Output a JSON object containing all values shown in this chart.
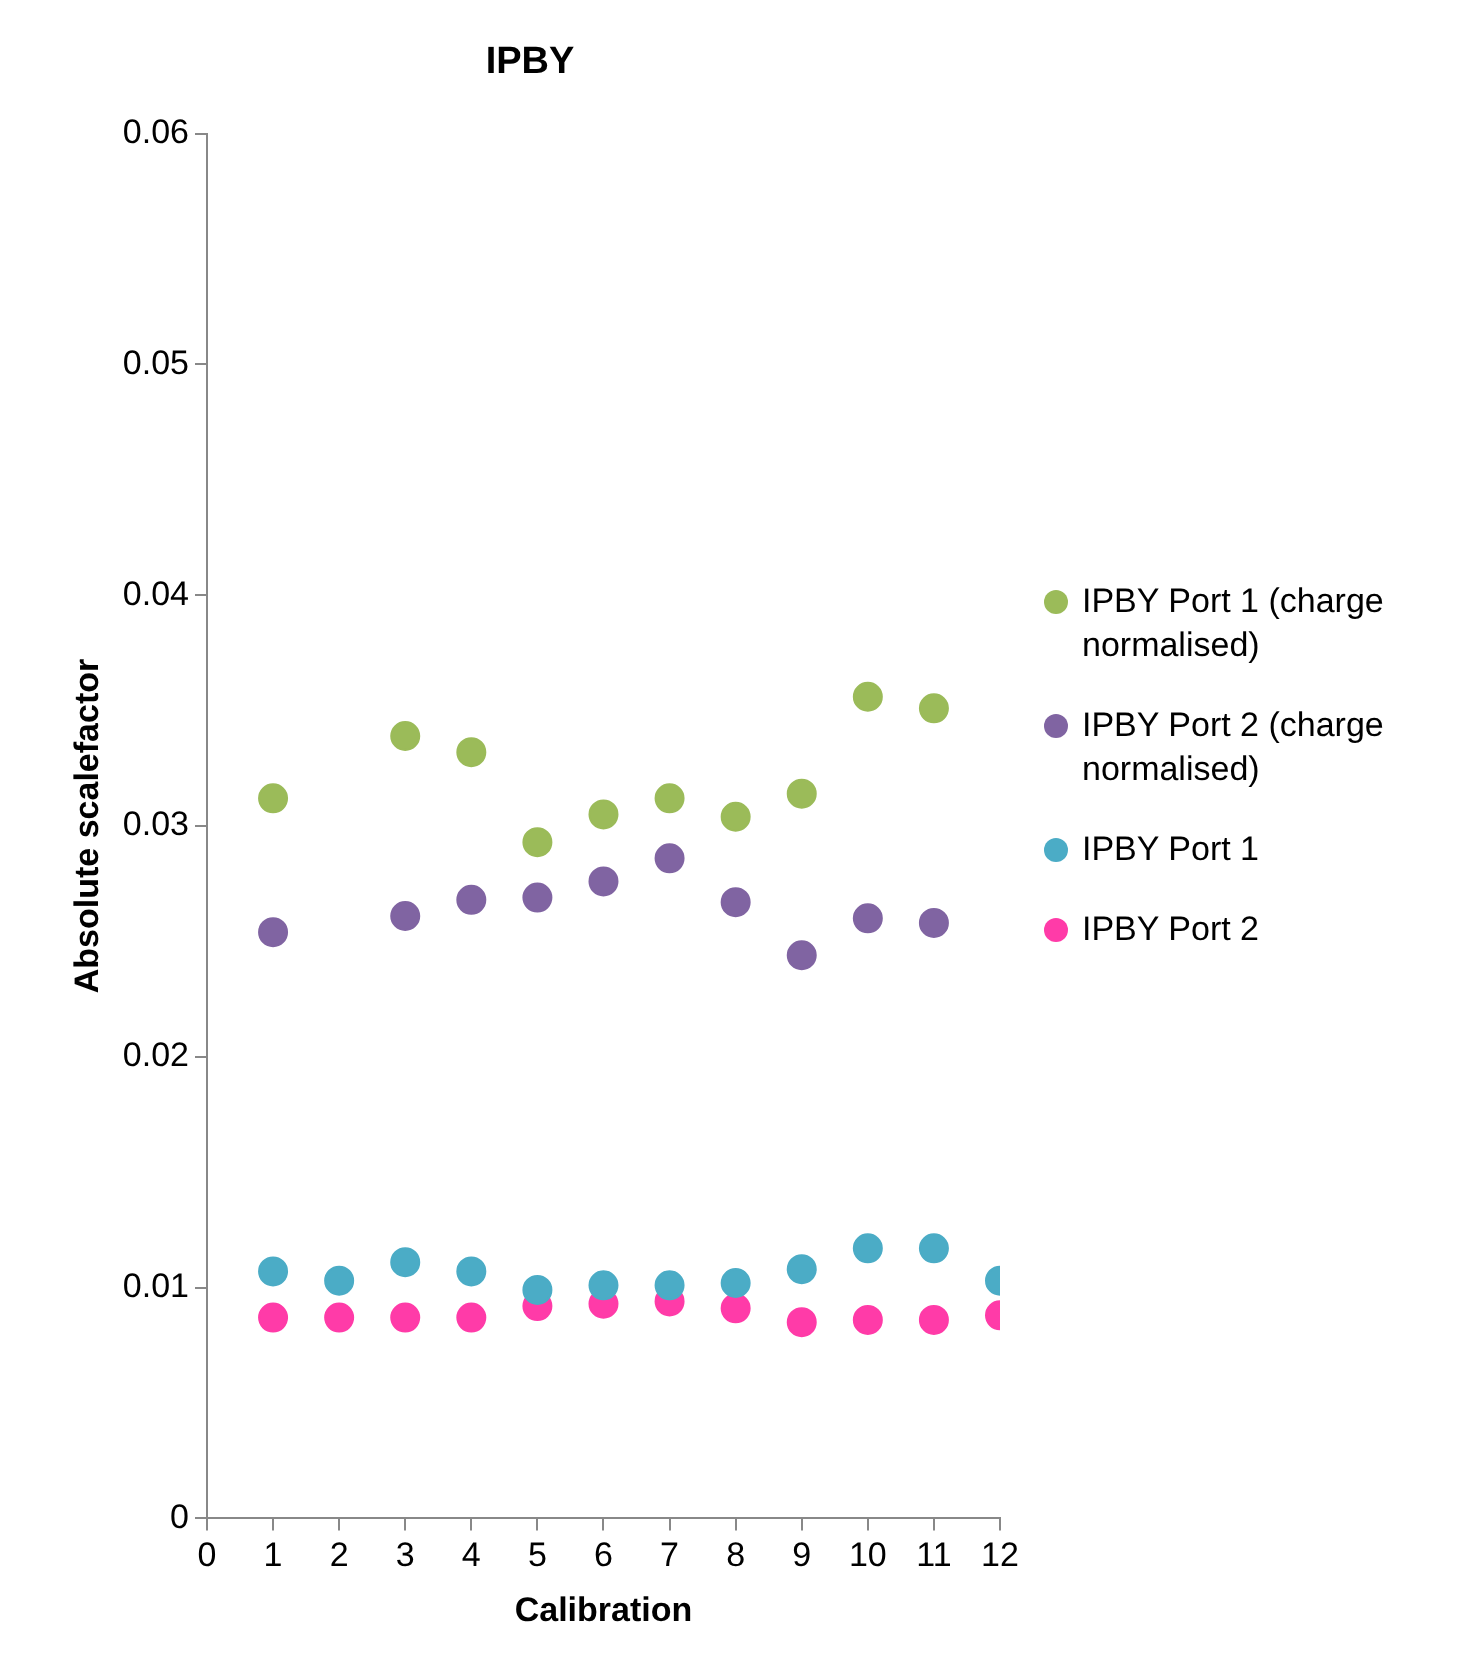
{
  "chart_data": {
    "type": "scatter",
    "title": "IPBY",
    "xlabel": "Calibration",
    "ylabel": "Absolute scalefactor",
    "x": [
      1,
      2,
      3,
      4,
      5,
      6,
      7,
      8,
      9,
      10,
      11,
      12
    ],
    "xlim": [
      0,
      12
    ],
    "xticks": [
      0,
      1,
      2,
      3,
      4,
      5,
      6,
      7,
      8,
      9,
      10,
      11,
      12
    ],
    "ylim": [
      0,
      0.06
    ],
    "yticks": [
      0,
      0.01,
      0.02,
      0.03,
      0.04,
      0.05,
      0.06
    ],
    "grid": false,
    "legend": "right",
    "marker": "circle",
    "series": [
      {
        "name": "IPBY Port 1 (charge normalised)",
        "color": "#9bbb59",
        "values": [
          0.0312,
          null,
          0.0339,
          0.0332,
          0.0293,
          0.0305,
          0.0312,
          0.0304,
          0.0314,
          0.0356,
          0.0351,
          null
        ]
      },
      {
        "name": "IPBY Port 2 (charge normalised)",
        "color": "#8064a2",
        "values": [
          0.0254,
          null,
          0.0261,
          0.0268,
          0.0269,
          0.0276,
          0.0286,
          0.0267,
          0.0244,
          0.026,
          0.0258,
          null
        ]
      },
      {
        "name": "IPBY Port 1",
        "color": "#4bacc6",
        "values": [
          0.0107,
          0.0103,
          0.0111,
          0.0107,
          0.0099,
          0.0101,
          0.0101,
          0.0102,
          0.0108,
          0.0117,
          0.0117,
          0.0103
        ]
      },
      {
        "name": "IPBY Port 2",
        "color": "#ff3ba8",
        "values": [
          0.0087,
          0.0087,
          0.0087,
          0.0087,
          0.0092,
          0.0093,
          0.0094,
          0.0091,
          0.0085,
          0.0086,
          0.0086,
          0.0088
        ]
      }
    ]
  }
}
